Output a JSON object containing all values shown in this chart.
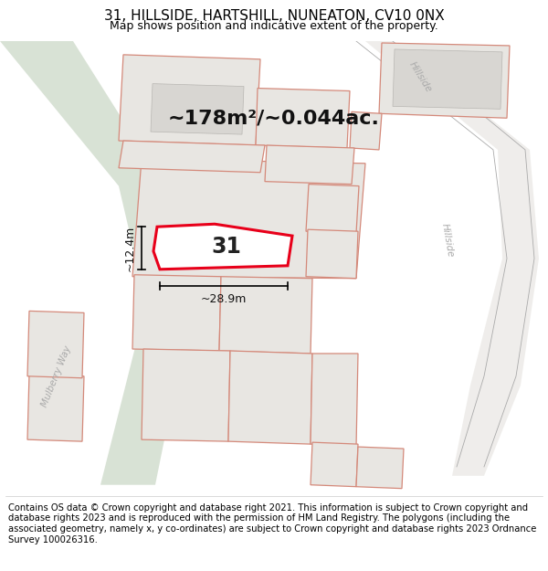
{
  "title": "31, HILLSIDE, HARTSHILL, NUNEATON, CV10 0NX",
  "subtitle": "Map shows position and indicative extent of the property.",
  "footer": "Contains OS data © Crown copyright and database right 2021. This information is subject to Crown copyright and database rights 2023 and is reproduced with the permission of HM Land Registry. The polygons (including the associated geometry, namely x, y co-ordinates) are subject to Crown copyright and database rights 2023 Ordnance Survey 100026316.",
  "area_text": "~178m²/~0.044ac.",
  "dim_width": "~28.9m",
  "dim_height": "~12.4m",
  "label_31": "31",
  "map_bg": "#f2f0ed",
  "plot_fill": "#e8e6e2",
  "plot_stroke": "#d4897a",
  "highlight_fill": "#ffffff",
  "highlight_stroke": "#e8001a",
  "green_fill": "#ccd9c8",
  "road_bg": "#e0ddd8",
  "road_label_color": "#aaaaaa",
  "title_fontsize": 11,
  "subtitle_fontsize": 9,
  "footer_fontsize": 7.2,
  "area_fontsize": 16,
  "dim_fontsize": 9
}
